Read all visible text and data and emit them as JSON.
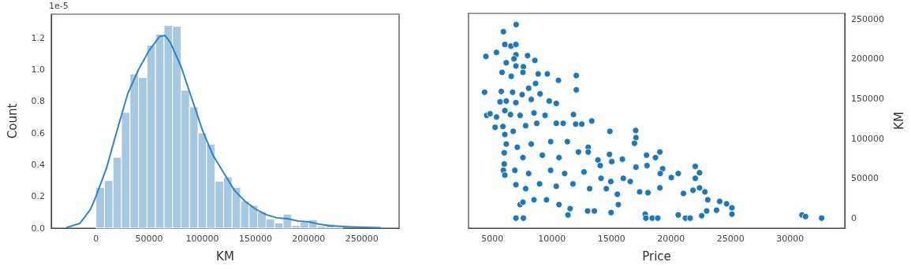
{
  "chart_data": [
    {
      "type": "histogram",
      "xlabel": "KM",
      "ylabel": "Count",
      "annotations": [
        "1e-5"
      ],
      "xlim": [
        -42000,
        285000
      ],
      "xticks": [
        0,
        50000,
        100000,
        150000,
        200000,
        250000
      ],
      "ylim": [
        0,
        1.35
      ],
      "yticks": [
        {
          "value": 0,
          "label": "0.0"
        },
        0.2,
        0.4,
        0.6,
        0.8,
        {
          "value": 1,
          "label": "1.0"
        },
        1.2
      ],
      "grid": false,
      "series": [
        {
          "type": "histogram",
          "color": "#a6c8e0",
          "bins": [
            0,
            8000,
            16000,
            24000,
            32000,
            40000,
            48000,
            56000,
            64000,
            72000,
            80000,
            88000,
            96000,
            104000,
            112000,
            120000,
            128000,
            136000,
            144000,
            152000,
            160000,
            168000,
            176000,
            184000,
            192000,
            200000,
            208000,
            216000,
            224000,
            232000
          ],
          "values": [
            0.257,
            0.3,
            0.447,
            0.73,
            0.973,
            0.95,
            1.154,
            1.223,
            1.278,
            1.273,
            0.87,
            0.765,
            0.6,
            0.53,
            0.295,
            0.323,
            0.257,
            0.17,
            0.144,
            0.103,
            0.058,
            0.033,
            0.088,
            0.017,
            0.038,
            0.053,
            0.013,
            0.025,
            0.008
          ]
        },
        {
          "type": "line",
          "color": "#3384c0",
          "x": [
            -28000,
            -15000,
            -5000,
            0,
            10000,
            20000,
            30000,
            40000,
            50000,
            60000,
            65000,
            70000,
            80000,
            90000,
            100000,
            110000,
            120000,
            130000,
            140000,
            150000,
            160000,
            170000,
            180000,
            190000,
            200000,
            210000,
            220000,
            240000,
            268000
          ],
          "values": [
            0.003,
            0.03,
            0.12,
            0.2,
            0.38,
            0.62,
            0.85,
            1.0,
            1.12,
            1.21,
            1.215,
            1.17,
            1.02,
            0.82,
            0.62,
            0.46,
            0.35,
            0.24,
            0.17,
            0.12,
            0.085,
            0.065,
            0.06,
            0.045,
            0.04,
            0.025,
            0.015,
            0.008,
            0.002
          ]
        }
      ]
    },
    {
      "type": "scatter",
      "xlabel": "Price",
      "ylabel": "KM",
      "xlim": [
        3000,
        34600
      ],
      "xticks": [
        5000,
        10000,
        15000,
        20000,
        25000,
        30000
      ],
      "ylim": [
        -12500,
        257000
      ],
      "yticks": [
        0,
        50000,
        100000,
        150000,
        200000,
        250000
      ],
      "grid": false,
      "marker": "circle",
      "color": "#1f77b4",
      "x": [
        7000,
        5930,
        6050,
        6560,
        6980,
        4460,
        5350,
        6980,
        7960,
        8570,
        6170,
        6820,
        6980,
        7610,
        5820,
        6590,
        7570,
        8850,
        9620,
        12050,
        10550,
        8630,
        8050,
        12050,
        4350,
        5750,
        6700,
        7500,
        9010,
        5650,
        6170,
        6980,
        8270,
        9780,
        10370,
        6050,
        4530,
        4810,
        5350,
        5230,
        5890,
        6520,
        7330,
        8500,
        9430,
        11810,
        13350,
        12000,
        12510,
        14870,
        17040,
        17060,
        16940,
        6050,
        6750,
        7800,
        8730,
        10370,
        10950,
        6170,
        7100,
        8270,
        9900,
        11300,
        13050,
        14840,
        19070,
        17950,
        18700,
        15920,
        15030,
        6000,
        6000,
        5930,
        6050,
        7570,
        9200,
        10600,
        12230,
        13050,
        13870,
        14060,
        17060,
        17990,
        19300,
        22040,
        22400,
        20610,
        20030,
        19100,
        22040,
        6890,
        8050,
        9900,
        11070,
        12700,
        14130,
        14950,
        16000,
        16580,
        6980,
        7800,
        8970,
        10370,
        11770,
        13170,
        14570,
        15500,
        17370,
        18070,
        19070,
        21050,
        21850,
        22400,
        22850,
        23090,
        24090,
        24670,
        25120,
        25120,
        23830,
        7330,
        7570,
        8500,
        9550,
        10600,
        11350,
        11530,
        13000,
        13570,
        14970,
        15580,
        17840,
        18420,
        17890,
        18890,
        21220,
        21610,
        20610,
        22580,
        23000,
        6980,
        7610,
        31000,
        31300,
        32650
      ],
      "values": [
        243000,
        234000,
        218000,
        216000,
        218000,
        203000,
        208000,
        205000,
        204000,
        198000,
        195000,
        200000,
        191000,
        190000,
        183000,
        178000,
        183000,
        181000,
        181000,
        179000,
        173000,
        169000,
        163000,
        161000,
        158000,
        159000,
        158000,
        155000,
        156000,
        146000,
        147000,
        145000,
        149000,
        147000,
        144000,
        135000,
        129000,
        131000,
        127000,
        114000,
        115000,
        130000,
        129000,
        132000,
        129000,
        130000,
        122000,
        118000,
        118000,
        109000,
        110000,
        101000,
        94000,
        105000,
        109000,
        116000,
        119000,
        119000,
        119000,
        93000,
        89000,
        93000,
        96000,
        96000,
        89000,
        80000,
        83000,
        79000,
        76000,
        74000,
        71000,
        82000,
        68000,
        60000,
        54000,
        76000,
        79000,
        76000,
        83000,
        83000,
        73000,
        66000,
        64000,
        66000,
        62000,
        65000,
        57000,
        56000,
        51000,
        56000,
        50000,
        60000,
        56000,
        60000,
        56000,
        58000,
        50000,
        46000,
        50000,
        46000,
        42000,
        37000,
        43000,
        40000,
        43000,
        37000,
        37000,
        30000,
        33000,
        32000,
        38000,
        31000,
        35000,
        38000,
        33000,
        23000,
        21000,
        18000,
        13000,
        5000,
        10000,
        17000,
        20000,
        23000,
        23000,
        17000,
        4000,
        12000,
        9000,
        9000,
        7000,
        17000,
        5000,
        0,
        0,
        0,
        0,
        0,
        4000,
        3000,
        9000,
        0,
        0,
        4000,
        2000,
        0
      ]
    }
  ]
}
